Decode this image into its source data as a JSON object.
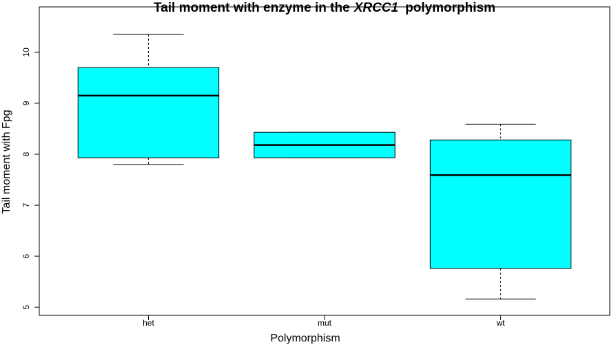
{
  "chart_data": {
    "type": "boxplot",
    "title": [
      "Tail moment with enzyme in the",
      "XRCC1",
      "polymorphism"
    ],
    "x_label": "Polymorphism",
    "y_label": "Tail moment with Fpg",
    "categories": [
      "het",
      "mut",
      "wt"
    ],
    "boxes": [
      {
        "min": 7.8,
        "q1": 7.93,
        "median": 9.15,
        "q3": 9.7,
        "max": 10.35
      },
      {
        "min": 7.93,
        "q1": 7.93,
        "median": 8.18,
        "q3": 8.43,
        "max": 8.43
      },
      {
        "min": 5.16,
        "q1": 5.76,
        "median": 7.59,
        "q3": 8.28,
        "max": 8.59
      }
    ],
    "color": "#00ffff",
    "ylim": [
      4.84,
      10.89
    ],
    "yticks": [
      5,
      6,
      7,
      8,
      9,
      10
    ]
  }
}
